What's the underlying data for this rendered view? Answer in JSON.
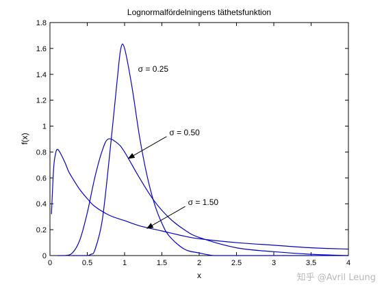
{
  "chart_data": {
    "type": "line",
    "title": "Lognormalfördelningens täthetsfunktion",
    "xlabel": "x",
    "ylabel": "f(x)",
    "xlim": [
      0,
      4
    ],
    "ylim": [
      0,
      1.8
    ],
    "xticks": [
      0,
      0.5,
      1,
      1.5,
      2,
      2.5,
      3,
      3.5,
      4
    ],
    "xtick_labels": [
      "0",
      "0.5",
      "1",
      "1.5",
      "2",
      "2.5",
      "3",
      "3.5",
      "4"
    ],
    "yticks": [
      0,
      0.2,
      0.4,
      0.6,
      0.8,
      1,
      1.2,
      1.4,
      1.6,
      1.8
    ],
    "ytick_labels": [
      "0",
      "0.2",
      "0.4",
      "0.6",
      "0.8",
      "1",
      "1.2",
      "1.4",
      "1.6",
      "1.8"
    ],
    "grid": false,
    "line_color": "#0000c8",
    "series": [
      {
        "x": [
          0.02,
          0.05,
          0.08,
          0.1,
          0.12,
          0.15,
          0.2,
          0.25,
          0.3,
          0.4,
          0.5,
          0.6,
          0.8,
          1.0,
          1.2,
          1.5,
          1.8,
          2.0,
          2.5,
          3.0,
          3.5,
          4.0
        ],
        "values": [
          0.32,
          0.68,
          0.8,
          0.82,
          0.81,
          0.78,
          0.72,
          0.65,
          0.6,
          0.51,
          0.44,
          0.38,
          0.31,
          0.27,
          0.23,
          0.19,
          0.15,
          0.13,
          0.1,
          0.08,
          0.06,
          0.05
        ]
      },
      {
        "x": [
          0.1,
          0.2,
          0.3,
          0.4,
          0.5,
          0.6,
          0.7,
          0.78,
          0.9,
          1.0,
          1.2,
          1.4,
          1.6,
          1.8,
          2.0,
          2.5,
          3.0,
          3.5,
          4.0
        ],
        "values": [
          0.0,
          0.0,
          0.02,
          0.12,
          0.33,
          0.6,
          0.81,
          0.9,
          0.87,
          0.8,
          0.6,
          0.42,
          0.29,
          0.2,
          0.14,
          0.06,
          0.03,
          0.01,
          0.0
        ]
      },
      {
        "x": [
          0.3,
          0.4,
          0.5,
          0.55,
          0.6,
          0.7,
          0.8,
          0.9,
          0.95,
          1.0,
          1.1,
          1.2,
          1.3,
          1.4,
          1.5,
          1.6,
          1.8,
          2.0,
          2.2,
          2.5,
          3.0,
          4.0
        ],
        "values": [
          0.0,
          0.0,
          0.0,
          0.01,
          0.04,
          0.27,
          0.78,
          1.35,
          1.6,
          1.6,
          1.3,
          0.92,
          0.62,
          0.4,
          0.25,
          0.15,
          0.05,
          0.02,
          0.0,
          0.0,
          0.0,
          0.0
        ]
      }
    ],
    "annotations": [
      {
        "text": "σ = 0.25",
        "x": 1.18,
        "y": 1.42
      },
      {
        "text": "σ = 0.50",
        "x": 1.6,
        "y": 0.93,
        "arrow_to": [
          1.05,
          0.75
        ]
      },
      {
        "text": "σ = 1.50",
        "x": 1.85,
        "y": 0.39,
        "arrow_to": [
          1.3,
          0.21
        ]
      }
    ]
  },
  "watermark": "知乎 @Avril Leung"
}
